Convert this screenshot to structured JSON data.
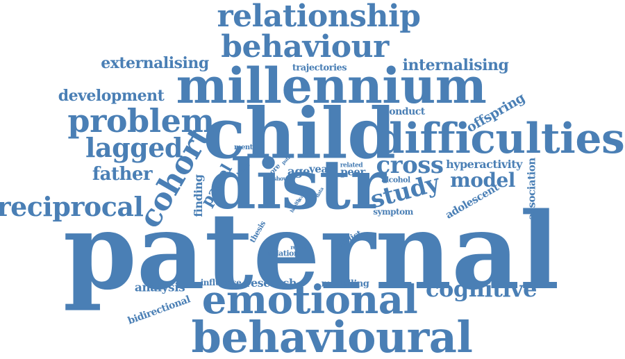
{
  "color": "#4a7fb5",
  "words": {
    "paternal": "paternal",
    "distr": "distr",
    "child": "child",
    "millennium": "millennium",
    "behavioural": "behavioural",
    "emotional": "emotional",
    "difficulties": "difficulties",
    "relationship": "relationship",
    "behaviour": "behaviour",
    "problem": "problem",
    "cohort": "cohort",
    "reciprocal": "reciprocal",
    "lagged": "lagged",
    "cross": "cross",
    "study": "study",
    "cognitive": "cognitive",
    "model": "model",
    "father": "father",
    "externalising": "externalising",
    "internalising": "internalising",
    "development": "development",
    "offspring": "offspring",
    "conduct": "conduct",
    "trajectories": "trajectories",
    "hyperactivity": "hyperactivity",
    "panel": "panel",
    "adolescent": "adolescent",
    "association": "association",
    "finding": "finding",
    "age": "age",
    "year": "year",
    "peer": "peer",
    "mental": "mental",
    "analysis": "analysis",
    "influence": "influence",
    "research": "research",
    "modelling": "modelling",
    "bidirectional": "bidirectional",
    "predict": "predict",
    "relation": "relation",
    "symptom": "symptom",
    "thesis": "thesis",
    "alcohol": "alcohol",
    "related": "related",
    "result": "result",
    "show": "show",
    "more": "more",
    "binge": "binge",
    "health": "health",
    "scale": "scale",
    "data": "data",
    "path": "path"
  }
}
